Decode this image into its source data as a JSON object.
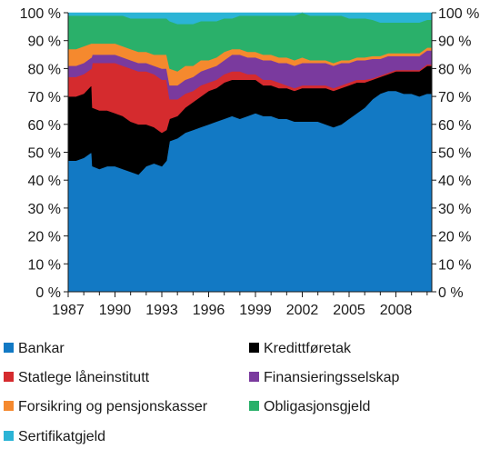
{
  "chart_data": {
    "type": "area",
    "stacked": true,
    "title": "",
    "xlabel": "",
    "ylabel": "",
    "ylim": [
      0,
      100
    ],
    "y_unit": "%",
    "y_ticks": [
      0,
      10,
      20,
      30,
      40,
      50,
      60,
      70,
      80,
      90,
      100
    ],
    "y_tick_labels": [
      "0 %",
      "10 %",
      "20 %",
      "30 %",
      "40 %",
      "50 %",
      "60 %",
      "70 %",
      "80 %",
      "90 %",
      "100 %"
    ],
    "y_axis_sides": "both",
    "x_range": [
      1987,
      2010.3
    ],
    "x_ticks": [
      1987,
      1990,
      1993,
      1996,
      1999,
      2002,
      2005,
      2008
    ],
    "x_tick_labels": [
      "1987",
      "1990",
      "1993",
      "1996",
      "1999",
      "2002",
      "2005",
      "2008"
    ],
    "grid": false,
    "legend_position": "bottom",
    "x": [
      1987.0,
      1987.5,
      1988.0,
      1988.5,
      1988.55,
      1989.0,
      1989.5,
      1990.0,
      1990.5,
      1991.0,
      1991.5,
      1992.0,
      1992.5,
      1993.0,
      1993.3,
      1993.5,
      1994.0,
      1994.5,
      1995.0,
      1995.5,
      1996.0,
      1996.5,
      1997.0,
      1997.5,
      1998.0,
      1998.5,
      1999.0,
      1999.5,
      2000.0,
      2000.5,
      2001.0,
      2001.5,
      2002.0,
      2002.5,
      2003.0,
      2003.5,
      2004.0,
      2004.5,
      2005.0,
      2005.5,
      2006.0,
      2006.5,
      2007.0,
      2007.5,
      2008.0,
      2008.5,
      2009.0,
      2009.5,
      2010.0,
      2010.3
    ],
    "series": [
      {
        "name": "Bankar",
        "color": "#1279c4",
        "values": [
          47,
          47,
          48,
          50,
          45,
          44,
          45,
          45,
          44,
          43,
          42,
          45,
          46,
          45,
          47,
          54,
          55,
          57,
          58,
          59,
          60,
          61,
          62,
          63,
          62,
          63,
          64,
          63,
          63,
          62,
          62,
          61,
          61,
          61,
          61,
          60,
          59,
          60,
          62,
          64,
          66,
          69,
          71,
          72,
          72,
          71,
          71,
          70,
          71,
          71
        ]
      },
      {
        "name": "Kredittføretak",
        "color": "#000000",
        "values": [
          23,
          23,
          23,
          24,
          21,
          21,
          20,
          19,
          19,
          18,
          18,
          15,
          13,
          12,
          11,
          8,
          8,
          9,
          10,
          11,
          12,
          12,
          13,
          13,
          14,
          13,
          12,
          11,
          11,
          11,
          11,
          11,
          12,
          12,
          12,
          13,
          13,
          13,
          12,
          11,
          9,
          7,
          6,
          6,
          7,
          8,
          8,
          9,
          10,
          10
        ]
      },
      {
        "name": "Statlege låneinstitutt",
        "color": "#d52b2e",
        "values": [
          7,
          7,
          7,
          6,
          16,
          17,
          17,
          18,
          18,
          19,
          19,
          19,
          19,
          19,
          18,
          7,
          6,
          5,
          4,
          4,
          3,
          3,
          3,
          3,
          3,
          2,
          2,
          2,
          2,
          2,
          1,
          1,
          1,
          1,
          1,
          1,
          1,
          1,
          1,
          1,
          1,
          0.5,
          0.5,
          0.5,
          0.5,
          0.5,
          0.5,
          0.5,
          0.5,
          0.5
        ]
      },
      {
        "name": "Finansieringsselskap",
        "color": "#7a3a9e",
        "values": [
          4,
          4,
          4,
          4,
          3,
          3,
          3,
          3,
          3,
          3,
          3,
          3,
          3,
          4,
          4,
          5,
          5,
          5,
          5,
          5,
          5,
          5,
          5,
          6,
          6,
          6,
          6,
          7,
          7,
          7,
          8,
          8,
          8,
          8,
          8,
          8,
          8,
          8,
          7,
          7,
          7,
          7,
          6,
          6,
          5,
          5,
          5,
          5,
          5,
          5
        ]
      },
      {
        "name": "Forsikring  og pensjonskasser",
        "color": "#f5892e",
        "values": [
          6,
          6,
          6,
          5,
          4,
          4,
          4,
          4,
          4,
          4,
          4,
          4,
          4,
          5,
          5,
          6,
          5,
          5,
          4,
          4,
          3,
          3,
          3,
          2,
          2,
          2,
          2,
          2,
          2,
          2,
          2,
          2,
          2,
          1,
          1,
          1,
          1,
          1,
          1,
          1,
          1,
          1,
          1,
          1,
          1,
          1,
          1,
          1,
          1,
          1
        ]
      },
      {
        "name": "Obligasjonsgjeld",
        "color": "#2ab06a",
        "values": [
          12,
          12,
          11,
          10,
          10,
          10,
          10,
          10,
          11,
          11,
          12,
          12,
          13,
          13,
          13,
          17,
          17,
          15,
          15,
          14,
          14,
          13,
          12,
          11,
          12,
          13,
          13,
          14,
          14,
          15,
          15,
          16,
          16,
          16,
          16,
          16,
          17,
          16,
          15,
          14,
          14,
          13,
          12,
          11,
          11,
          11,
          11,
          11,
          10,
          10
        ]
      },
      {
        "name": "Sertifikatgjeld",
        "color": "#2bb4d6",
        "values": [
          1,
          1,
          1,
          1,
          1,
          1,
          1,
          1,
          1,
          2,
          2,
          2,
          2,
          2,
          2,
          3,
          4,
          4,
          4,
          3,
          3,
          3,
          2,
          2,
          1,
          1,
          1,
          1,
          1,
          1,
          1,
          1,
          0,
          1,
          1,
          1,
          1,
          1,
          2,
          2,
          2,
          2.5,
          3.5,
          3.5,
          3.5,
          3.5,
          3.5,
          3.5,
          2.5,
          2.5
        ]
      }
    ]
  }
}
